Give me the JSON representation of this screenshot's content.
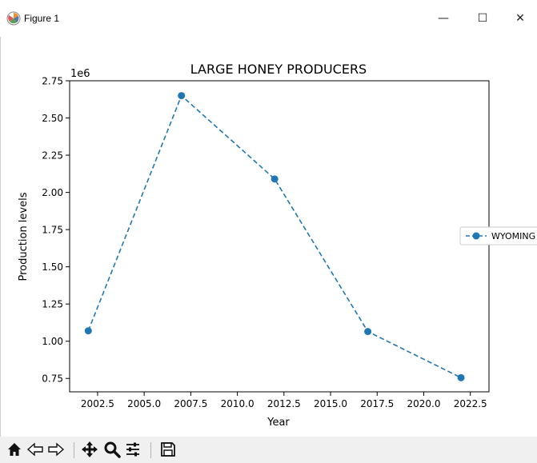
{
  "window": {
    "title": "Figure 1",
    "controls": {
      "minimize": "—",
      "maximize": "☐",
      "close": "✕"
    }
  },
  "toolbar": {
    "buttons": [
      {
        "name": "home-icon"
      },
      {
        "name": "back-arrow-icon"
      },
      {
        "name": "forward-arrow-icon"
      },
      {
        "name": "pan-move-icon"
      },
      {
        "name": "zoom-magnifier-icon"
      },
      {
        "name": "configure-subplots-icon"
      },
      {
        "name": "save-floppy-icon"
      }
    ]
  },
  "colors": {
    "series": "#1f77b4",
    "toolbar_bg": "#f0f0f0"
  },
  "chart_data": {
    "type": "line",
    "title": "LARGE HONEY PRODUCERS",
    "xlabel": "Year",
    "ylabel": "Production levels",
    "offset_text": "1e6",
    "xlim": [
      2001,
      2023.5
    ],
    "ylim": [
      0.66,
      2.75
    ],
    "x_ticks": [
      2002.5,
      2005.0,
      2007.5,
      2010.0,
      2012.5,
      2015.0,
      2017.5,
      2020.0,
      2022.5
    ],
    "x_tick_labels": [
      "2002.5",
      "2005.0",
      "2007.5",
      "2010.0",
      "2012.5",
      "2015.0",
      "2017.5",
      "2020.0",
      "2022.5"
    ],
    "y_ticks": [
      0.75,
      1.0,
      1.25,
      1.5,
      1.75,
      2.0,
      2.25,
      2.5,
      2.75
    ],
    "y_tick_labels": [
      "0.75",
      "1.00",
      "1.25",
      "1.50",
      "1.75",
      "2.00",
      "2.25",
      "2.50",
      "2.75"
    ],
    "grid": false,
    "legend_position": "right, outside plot",
    "series": [
      {
        "name": "WYOMING",
        "color": "#1f77b4",
        "line_style": "dashed",
        "marker": "circle",
        "x": [
          2002,
          2007,
          2012,
          2017,
          2022
        ],
        "y": [
          1.07,
          2.65,
          2.09,
          1.065,
          0.755
        ]
      }
    ]
  }
}
